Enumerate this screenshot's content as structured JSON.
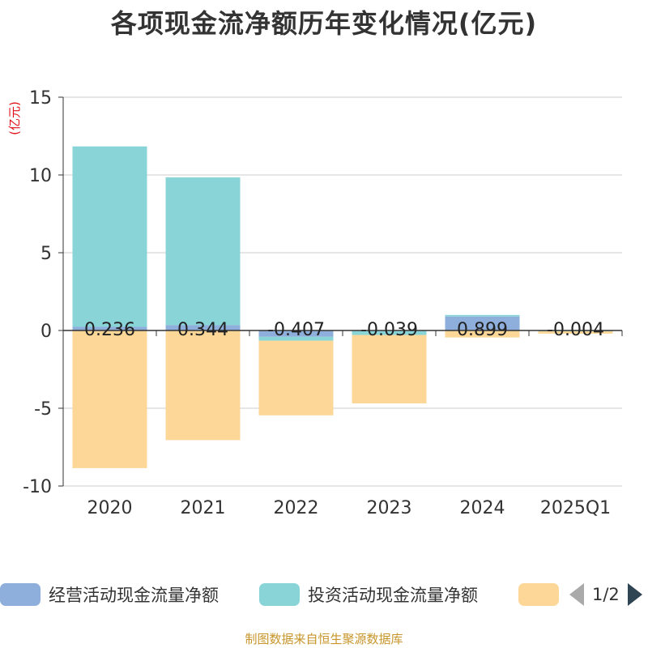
{
  "title": "各项现金流净额历年变化情况(亿元)",
  "footer": "制图数据来自恒生聚源数据库",
  "colors": {
    "operating": "#8eaedb",
    "investing": "#88d4d7",
    "financing": "#fdd797",
    "axis_label": "#e0101a"
  },
  "legend": {
    "items": [
      {
        "label": "经营活动现金流量净额",
        "color": "#8eaedb"
      },
      {
        "label": "投资活动现金流量净额",
        "color": "#88d4d7"
      },
      {
        "label": "",
        "color": "#fdd797"
      }
    ],
    "page": "1/2"
  },
  "chart_data": {
    "type": "bar",
    "stacked": true,
    "categories": [
      "2020",
      "2021",
      "2022",
      "2023",
      "2024",
      "2025Q1"
    ],
    "ylabel": "(亿元)",
    "ylim": [
      -10,
      15
    ],
    "yticks": [
      15,
      10,
      5,
      0,
      -5,
      -10
    ],
    "grid": true,
    "legend_position": "bottom",
    "series": [
      {
        "name": "经营活动现金流量净额",
        "values": [
          0.236,
          0.344,
          -0.407,
          -0.039,
          0.899,
          -0.004
        ]
      },
      {
        "name": "投资活动现金流量净额",
        "values": [
          11.6,
          9.5,
          -0.25,
          -0.25,
          0.1,
          -0.05
        ]
      },
      {
        "values": [
          -8.85,
          -7.05,
          -4.8,
          -4.4,
          -0.45,
          -0.15
        ]
      }
    ],
    "data_labels": [
      "0.236",
      "0.344",
      "-0.407",
      "-0.039",
      "0.899",
      "-0.004"
    ]
  }
}
